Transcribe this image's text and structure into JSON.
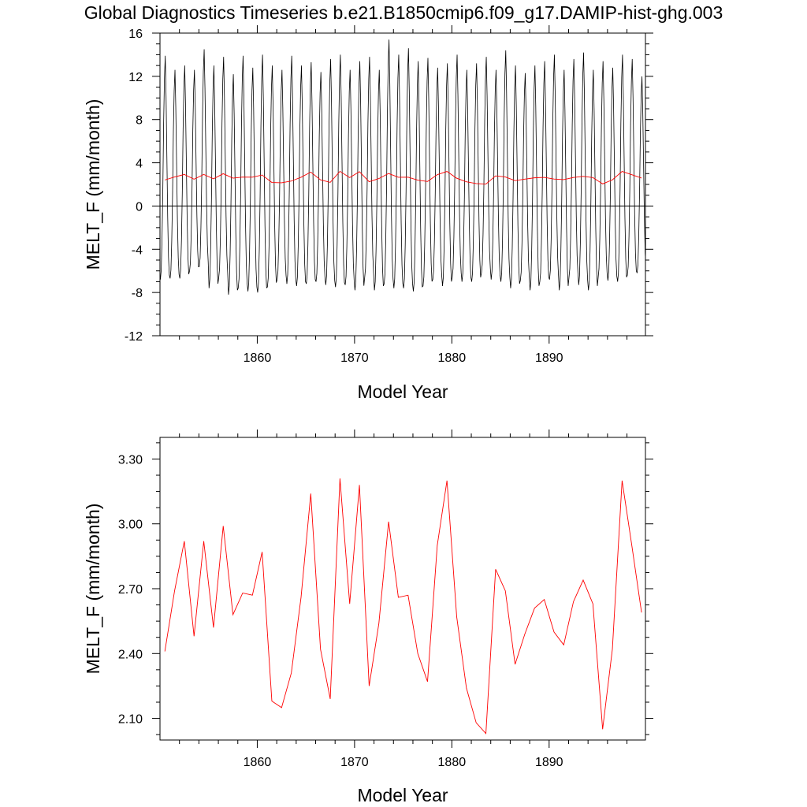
{
  "title": "Global Diagnostics Timeseries b.e21.B1850cmip6.f09_g17.DAMIP-hist-ghg.003",
  "colors": {
    "monthly": "#000000",
    "annual": "#ff0000",
    "axis": "#000000",
    "background": "#ffffff"
  },
  "chart_data": [
    {
      "type": "line",
      "xlabel": "Model Year",
      "ylabel": "MELT_F (mm/month)",
      "xlim": [
        1850,
        1899.9
      ],
      "ylim": [
        -12,
        16
      ],
      "x_ticks": [
        1860,
        1870,
        1880,
        1890
      ],
      "x_tick_labels": [
        "1860",
        "1870",
        "1880",
        "1890"
      ],
      "y_ticks": [
        -12,
        -8,
        -4,
        0,
        4,
        8,
        12,
        16
      ],
      "y_tick_labels": [
        "-12",
        "-8",
        "-4",
        "0",
        "4",
        "8",
        "12",
        "16"
      ],
      "zero_line": true,
      "grid": false,
      "series": [
        {
          "key": "monthly",
          "color": "#000000",
          "note_period": "monthly, one value per month; each year peaks near Jul and dips near Jan",
          "annual_peaks": [
            13.9,
            12.6,
            13.0,
            12.6,
            14.5,
            13.0,
            13.8,
            12.2,
            13.9,
            12.8,
            14.0,
            13.0,
            12.6,
            13.9,
            13.0,
            13.3,
            12.4,
            13.6,
            14.0,
            12.6,
            13.4,
            13.8,
            12.6,
            15.4,
            14.0,
            14.6,
            13.4,
            13.7,
            12.8,
            13.2,
            14.0,
            12.6,
            13.2,
            13.8,
            12.6,
            14.4,
            13.0,
            12.3,
            13.0,
            13.4,
            14.0,
            12.6,
            13.6,
            14.2,
            12.6,
            13.4,
            12.8,
            14.0,
            13.6,
            12.0
          ],
          "annual_troughs": [
            -6.8,
            -6.7,
            -6.7,
            -6.0,
            -5.6,
            -7.6,
            -6.6,
            -8.2,
            -7.6,
            -7.9,
            -8.0,
            -7.5,
            -6.8,
            -7.2,
            -7.4,
            -7.2,
            -7.0,
            -7.3,
            -7.5,
            -7.3,
            -7.8,
            -6.6,
            -7.8,
            -7.2,
            -7.6,
            -7.6,
            -7.9,
            -7.4,
            -6.8,
            -7.4,
            -6.6,
            -7.0,
            -7.0,
            -6.2,
            -6.8,
            -7.0,
            -7.6,
            -6.9,
            -7.8,
            -7.0,
            -6.8,
            -7.8,
            -6.6,
            -7.3,
            -7.8,
            -6.6,
            -6.9,
            -7.0,
            -6.4,
            -6.2
          ]
        },
        {
          "key": "annual_mean",
          "color": "#ff0000",
          "x": [
            1850.5,
            1851.5,
            1852.5,
            1853.5,
            1854.5,
            1855.5,
            1856.5,
            1857.5,
            1858.5,
            1859.5,
            1860.5,
            1861.5,
            1862.5,
            1863.5,
            1864.5,
            1865.5,
            1866.5,
            1867.5,
            1868.5,
            1869.5,
            1870.5,
            1871.5,
            1872.5,
            1873.5,
            1874.5,
            1875.5,
            1876.5,
            1877.5,
            1878.5,
            1879.5,
            1880.5,
            1881.5,
            1882.5,
            1883.5,
            1884.5,
            1885.5,
            1886.5,
            1887.5,
            1888.5,
            1889.5,
            1890.5,
            1891.5,
            1892.5,
            1893.5,
            1894.5,
            1895.5,
            1896.5,
            1897.5,
            1898.5,
            1899.5
          ],
          "y": [
            2.41,
            2.69,
            2.92,
            2.48,
            2.92,
            2.52,
            2.99,
            2.58,
            2.68,
            2.67,
            2.87,
            2.18,
            2.15,
            2.31,
            2.66,
            3.14,
            2.42,
            2.19,
            3.21,
            2.63,
            3.18,
            2.25,
            2.54,
            3.01,
            2.66,
            2.67,
            2.4,
            2.27,
            2.9,
            3.2,
            2.57,
            2.24,
            2.08,
            2.03,
            2.79,
            2.69,
            2.35,
            2.49,
            2.61,
            2.65,
            2.5,
            2.44,
            2.64,
            2.74,
            2.63,
            2.05,
            2.42,
            3.2,
            2.9,
            2.59
          ]
        }
      ]
    },
    {
      "type": "line",
      "xlabel": "Model Year",
      "ylabel": "MELT_F (mm/month)",
      "xlim": [
        1850,
        1899.9
      ],
      "ylim": [
        2.0,
        3.4
      ],
      "x_ticks": [
        1860,
        1870,
        1880,
        1890
      ],
      "x_tick_labels": [
        "1860",
        "1870",
        "1880",
        "1890"
      ],
      "y_ticks": [
        2.1,
        2.4,
        2.7,
        3.0,
        3.3
      ],
      "y_tick_labels": [
        "2.10",
        "2.40",
        "2.70",
        "3.00",
        "3.30"
      ],
      "zero_line": false,
      "grid": false,
      "series": [
        {
          "key": "annual_mean",
          "color": "#ff0000",
          "x": [
            1850.5,
            1851.5,
            1852.5,
            1853.5,
            1854.5,
            1855.5,
            1856.5,
            1857.5,
            1858.5,
            1859.5,
            1860.5,
            1861.5,
            1862.5,
            1863.5,
            1864.5,
            1865.5,
            1866.5,
            1867.5,
            1868.5,
            1869.5,
            1870.5,
            1871.5,
            1872.5,
            1873.5,
            1874.5,
            1875.5,
            1876.5,
            1877.5,
            1878.5,
            1879.5,
            1880.5,
            1881.5,
            1882.5,
            1883.5,
            1884.5,
            1885.5,
            1886.5,
            1887.5,
            1888.5,
            1889.5,
            1890.5,
            1891.5,
            1892.5,
            1893.5,
            1894.5,
            1895.5,
            1896.5,
            1897.5,
            1898.5,
            1899.5
          ],
          "y": [
            2.41,
            2.69,
            2.92,
            2.48,
            2.92,
            2.52,
            2.99,
            2.58,
            2.68,
            2.67,
            2.87,
            2.18,
            2.15,
            2.31,
            2.66,
            3.14,
            2.42,
            2.19,
            3.21,
            2.63,
            3.18,
            2.25,
            2.54,
            3.01,
            2.66,
            2.67,
            2.4,
            2.27,
            2.9,
            3.2,
            2.57,
            2.24,
            2.08,
            2.03,
            2.79,
            2.69,
            2.35,
            2.49,
            2.61,
            2.65,
            2.5,
            2.44,
            2.64,
            2.74,
            2.63,
            2.05,
            2.42,
            3.2,
            2.9,
            2.59
          ]
        }
      ]
    }
  ]
}
